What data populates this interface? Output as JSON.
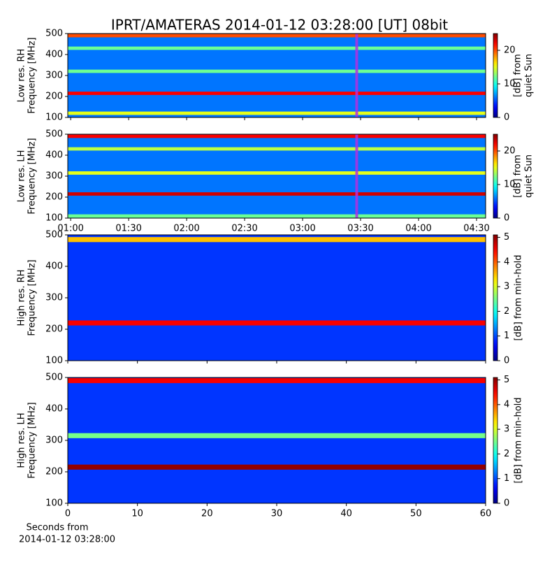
{
  "title": "IPRT/AMATERAS 2014-01-12 03:28:00 [UT]   08bit",
  "footer": [
    "Seconds from",
    "2014-01-12 03:28:00"
  ],
  "chart_data": [
    {
      "type": "spectrogram",
      "ylabel": [
        "Low res. RH",
        "Frequency [MHz]"
      ],
      "xlim": [
        58.5,
        274.7
      ],
      "xticks": [
        60,
        90,
        120,
        150,
        180,
        210,
        240,
        270
      ],
      "xticklabels": false,
      "ylim": [
        100,
        500
      ],
      "yticks": [
        100,
        200,
        300,
        400,
        500
      ],
      "background_db": 6,
      "bands": [
        {
          "freq": 490,
          "db": 20
        },
        {
          "freq": 430,
          "db": 12
        },
        {
          "freq": 320,
          "db": 12
        },
        {
          "freq": 215,
          "db": 22
        },
        {
          "freq": 120,
          "db": 15
        }
      ],
      "marker": 208,
      "marker_color": "#b030e0",
      "clim": [
        0,
        25
      ],
      "cticks": [
        0,
        10,
        20
      ],
      "clabel": [
        "[dB] from",
        "quiet Sun"
      ]
    },
    {
      "type": "spectrogram",
      "ylabel": [
        "Low res. LH",
        "Frequency [MHz]"
      ],
      "xlim": [
        58.5,
        274.7
      ],
      "xticks": [
        {
          "value": 60,
          "label": "01:00"
        },
        {
          "value": 90,
          "label": "01:30"
        },
        {
          "value": 120,
          "label": "02:00"
        },
        {
          "value": 150,
          "label": "02:30"
        },
        {
          "value": 180,
          "label": "03:00"
        },
        {
          "value": 210,
          "label": "03:30"
        },
        {
          "value": 240,
          "label": "04:00"
        },
        {
          "value": 270,
          "label": "04:30"
        }
      ],
      "xticklabels": true,
      "ylim": [
        100,
        500
      ],
      "yticks": [
        100,
        200,
        300,
        400,
        500
      ],
      "background_db": 6,
      "bands": [
        {
          "freq": 490,
          "db": 22
        },
        {
          "freq": 430,
          "db": 14
        },
        {
          "freq": 315,
          "db": 15
        },
        {
          "freq": 215,
          "db": 23
        },
        {
          "freq": 110,
          "db": 12
        }
      ],
      "marker": 208,
      "marker_color": "#b030e0",
      "clim": [
        0,
        25
      ],
      "cticks": [
        0,
        10,
        20
      ],
      "clabel": [
        "[dB] from",
        "quiet Sun"
      ]
    },
    {
      "type": "spectrogram",
      "ylabel": [
        "High res. RH",
        "Frequency [MHz]"
      ],
      "xlim": [
        0,
        60
      ],
      "xticks": [
        0,
        10,
        20,
        30,
        40,
        50,
        60
      ],
      "xticklabels": false,
      "ylim": [
        100,
        500
      ],
      "yticks": [
        100,
        200,
        300,
        400,
        500
      ],
      "background_db": 0.9,
      "bands": [
        {
          "freq": 485,
          "db": 3.5
        },
        {
          "freq": 220,
          "db": 4.5
        }
      ],
      "clim": [
        0,
        5.1
      ],
      "cticks": [
        0,
        1,
        2,
        3,
        4,
        5
      ],
      "clabel": [
        "[dB] from min-hold"
      ]
    },
    {
      "type": "spectrogram",
      "ylabel": [
        "High res. LH",
        "Frequency [MHz]"
      ],
      "xlim": [
        0,
        60
      ],
      "xticks": [
        0,
        10,
        20,
        30,
        40,
        50,
        60
      ],
      "xticklabels": true,
      "ylim": [
        100,
        500
      ],
      "yticks": [
        100,
        200,
        300,
        400,
        500
      ],
      "background_db": 0.9,
      "bands": [
        {
          "freq": 490,
          "db": 4.5
        },
        {
          "freq": 315,
          "db": 2.5
        },
        {
          "freq": 215,
          "db": 5
        }
      ],
      "clim": [
        0,
        5.1
      ],
      "cticks": [
        0,
        1,
        2,
        3,
        4,
        5
      ],
      "clabel": [
        "[dB] from min-hold"
      ]
    }
  ]
}
